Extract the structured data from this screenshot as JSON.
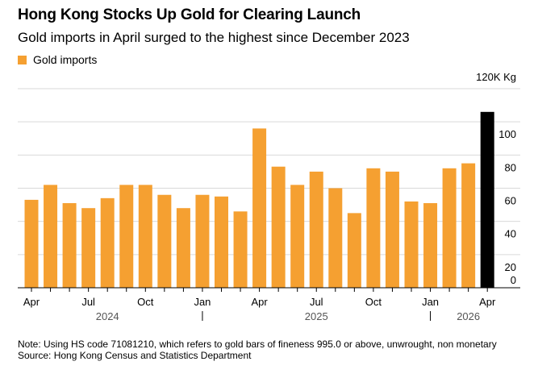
{
  "title": "Hong Kong Stocks Up Gold for Clearing Launch",
  "subtitle": "Gold imports in April surged to the highest since December 2023",
  "legend": {
    "label": "Gold imports",
    "color": "#f5a031"
  },
  "note": "Note: Using HS code 71081210, which refers to gold bars of fineness 995.0 or above, unwrought, non monetary",
  "source": "Source: Hong Kong Census and Statistics Department",
  "chart_data": {
    "type": "bar",
    "title": "Hong Kong Stocks Up Gold for Clearing Launch",
    "subtitle": "Gold imports in April surged to the highest since December 2023",
    "unit_label": "120K Kg",
    "ylim": [
      0,
      120
    ],
    "yticks": [
      0,
      20,
      40,
      60,
      80,
      100
    ],
    "y_axis_position": "right",
    "grid": true,
    "legend_position": "top-left",
    "series": [
      {
        "name": "Gold imports",
        "color": "#f5a031",
        "highlight_color": "#000000",
        "highlight_index": 24,
        "values": [
          53,
          62,
          51,
          48,
          54,
          62,
          62,
          56,
          48,
          56,
          55,
          46,
          96,
          73,
          62,
          70,
          60,
          45,
          72,
          70,
          52,
          51,
          72,
          75,
          106
        ]
      }
    ],
    "categories": [
      "Apr 2024",
      "May 2024",
      "Jun 2024",
      "Jul 2024",
      "Aug 2024",
      "Sep 2024",
      "Oct 2024",
      "Nov 2024",
      "Dec 2024",
      "Jan 2025",
      "Feb 2025",
      "Mar 2025",
      "Apr 2025",
      "May 2025",
      "Jun 2025",
      "Jul 2025",
      "Aug 2025",
      "Sep 2025",
      "Oct 2025",
      "Nov 2025",
      "Dec 2025",
      "Jan 2026",
      "Feb 2026",
      "Mar 2026",
      "Apr 2026"
    ],
    "x_tick_labels": [
      {
        "index": 0,
        "label": "Apr"
      },
      {
        "index": 3,
        "label": "Jul"
      },
      {
        "index": 6,
        "label": "Oct"
      },
      {
        "index": 9,
        "label": "Jan"
      },
      {
        "index": 12,
        "label": "Apr"
      },
      {
        "index": 15,
        "label": "Jul"
      },
      {
        "index": 18,
        "label": "Oct"
      },
      {
        "index": 21,
        "label": "Jan"
      },
      {
        "index": 24,
        "label": "Apr"
      }
    ],
    "year_labels": [
      {
        "label": "2024",
        "center_index": 4
      },
      {
        "label": "2025",
        "center_index": 15
      },
      {
        "label": "2026",
        "center_index": 23
      }
    ],
    "year_separators": [
      9,
      21
    ]
  }
}
